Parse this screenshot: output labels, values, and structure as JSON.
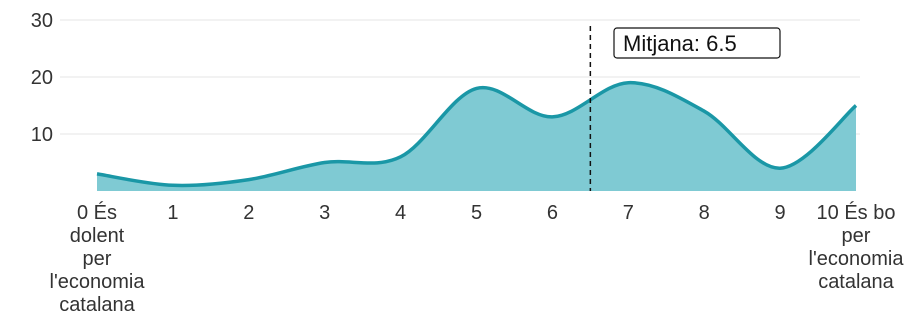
{
  "chart_data": {
    "type": "area",
    "x": [
      0,
      1,
      2,
      3,
      4,
      5,
      6,
      7,
      8,
      9,
      10
    ],
    "x_tick_labels": [
      "0 És dolent per l'economia catalana",
      "1",
      "2",
      "3",
      "4",
      "5",
      "6",
      "7",
      "8",
      "9",
      "10 És bo per l'economia catalana"
    ],
    "values": [
      3,
      1,
      2,
      5,
      6,
      18,
      13,
      19,
      14,
      4,
      15
    ],
    "y_ticks": [
      10,
      20,
      30
    ],
    "ylim": [
      0,
      30
    ],
    "xlim": [
      0,
      10
    ],
    "grid": true,
    "colors": {
      "fill": "#7fcad3",
      "line": "#1a97a6"
    },
    "mean_line": {
      "value": 6.5,
      "label": "Mitjana: 6.5"
    }
  }
}
